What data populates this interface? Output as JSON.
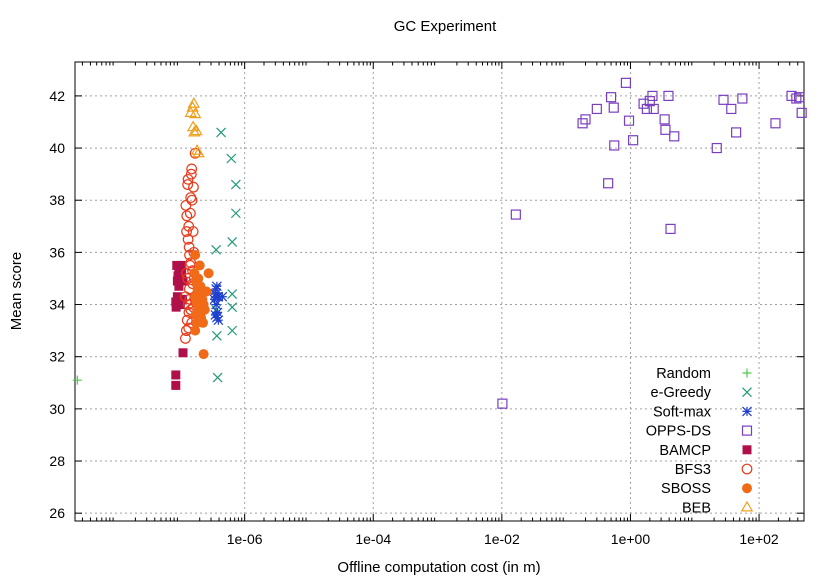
{
  "chart_data": {
    "type": "scatter",
    "title": "GC Experiment",
    "xlabel": "Offline computation cost (in m)",
    "ylabel": "Mean score",
    "xscale": "log",
    "xlim": [
      2.3e-09,
      500
    ],
    "ylim": [
      25.7,
      43.3
    ],
    "xticks": [
      {
        "value": 1e-06,
        "label": "1e-06"
      },
      {
        "value": 0.0001,
        "label": "1e-04"
      },
      {
        "value": 0.01,
        "label": "1e-02"
      },
      {
        "value": 1,
        "label": "1e+00"
      },
      {
        "value": 100,
        "label": "1e+02"
      }
    ],
    "yticks": [
      26,
      28,
      30,
      32,
      34,
      36,
      38,
      40,
      42
    ],
    "grid": true,
    "legend_position": "bottom-right",
    "series": [
      {
        "name": "Random",
        "marker": "plus",
        "color": "#4cc94c",
        "points": [
          [
            2.5e-09,
            31.1
          ]
        ]
      },
      {
        "name": "e-Greedy",
        "marker": "x",
        "color": "#22997a",
        "points": [
          [
            4.3e-07,
            40.6
          ],
          [
            6.2e-07,
            39.6
          ],
          [
            7.3e-07,
            38.6
          ],
          [
            7.3e-07,
            37.5
          ],
          [
            6.4e-07,
            36.4
          ],
          [
            3.6e-07,
            36.1
          ],
          [
            6.4e-07,
            34.4
          ],
          [
            6.4e-07,
            33.9
          ],
          [
            3.6e-07,
            33.8
          ],
          [
            6.4e-07,
            33.0
          ],
          [
            3.7e-07,
            32.8
          ],
          [
            3.8e-07,
            31.2
          ]
        ]
      },
      {
        "name": "Soft-max",
        "marker": "star",
        "color": "#1f3fcf",
        "points": [
          [
            3.7e-07,
            34.7
          ],
          [
            3.6e-07,
            34.6
          ],
          [
            3.5e-07,
            34.4
          ],
          [
            3.8e-07,
            34.3
          ],
          [
            3.4e-07,
            34.2
          ],
          [
            3.9e-07,
            34.3
          ],
          [
            4.5e-07,
            34.3
          ],
          [
            3.6e-07,
            34.0
          ],
          [
            3.8e-07,
            33.7
          ],
          [
            3.5e-07,
            33.6
          ],
          [
            3.7e-07,
            33.5
          ],
          [
            3.9e-07,
            33.4
          ]
        ]
      },
      {
        "name": "OPPS-DS",
        "marker": "square-open",
        "color": "#7a3fbf",
        "points": [
          [
            0.0102,
            30.2
          ],
          [
            0.0165,
            37.45
          ],
          [
            0.45,
            38.65
          ],
          [
            4.2,
            36.9
          ],
          [
            0.18,
            40.95
          ],
          [
            0.2,
            41.1
          ],
          [
            0.3,
            41.5
          ],
          [
            0.5,
            41.95
          ],
          [
            0.55,
            41.55
          ],
          [
            0.85,
            42.5
          ],
          [
            0.95,
            41.05
          ],
          [
            1.1,
            40.3
          ],
          [
            0.56,
            40.1
          ],
          [
            1.6,
            41.7
          ],
          [
            1.8,
            41.5
          ],
          [
            2.0,
            41.8
          ],
          [
            2.2,
            42.0
          ],
          [
            2.3,
            41.5
          ],
          [
            3.4,
            41.1
          ],
          [
            3.5,
            40.7
          ],
          [
            3.9,
            42.0
          ],
          [
            4.8,
            40.45
          ],
          [
            22,
            40.0
          ],
          [
            28,
            41.85
          ],
          [
            37,
            41.5
          ],
          [
            44,
            40.6
          ],
          [
            55,
            41.9
          ],
          [
            180,
            40.95
          ],
          [
            320,
            42.0
          ],
          [
            380,
            41.9
          ],
          [
            420,
            41.95
          ],
          [
            460,
            41.35
          ]
        ]
      },
      {
        "name": "BAMCP",
        "marker": "square",
        "color": "#b0104a",
        "points": [
          [
            8.5e-08,
            31.3
          ],
          [
            8.5e-08,
            30.9
          ],
          [
            1.1e-07,
            32.15
          ],
          [
            8.5e-08,
            34.1
          ],
          [
            8.6e-08,
            33.9
          ],
          [
            9e-08,
            34.3
          ],
          [
            9e-08,
            34.9
          ],
          [
            9.5e-08,
            35.2
          ],
          [
            8.8e-08,
            35.5
          ],
          [
            1.02e-07,
            35.5
          ],
          [
            1.05e-07,
            35.2
          ],
          [
            9.5e-08,
            34.7
          ],
          [
            1.08e-07,
            34.2
          ],
          [
            1e-07,
            34.0
          ],
          [
            9.2e-08,
            35.1
          ],
          [
            1.1e-07,
            34.9
          ]
        ]
      },
      {
        "name": "BFS3",
        "marker": "circle-open",
        "color": "#e83a1a",
        "points": [
          [
            1.32e-07,
            38.8
          ],
          [
            1.6e-07,
            38.5
          ],
          [
            1.5e-07,
            39.2
          ],
          [
            1.45e-07,
            38.1
          ],
          [
            1.22e-07,
            37.8
          ],
          [
            1.26e-07,
            37.4
          ],
          [
            1.35e-07,
            37.0
          ],
          [
            1.32e-07,
            36.5
          ],
          [
            1.37e-07,
            36.2
          ],
          [
            1.39e-07,
            35.9
          ],
          [
            1.42e-07,
            35.5
          ],
          [
            1.25e-07,
            35.2
          ],
          [
            1.3e-07,
            35.0
          ],
          [
            1.38e-07,
            34.6
          ],
          [
            1.2e-07,
            34.3
          ],
          [
            1.33e-07,
            34.0
          ],
          [
            1.36e-07,
            33.7
          ],
          [
            1.28e-07,
            33.4
          ],
          [
            1.24e-07,
            33.0
          ],
          [
            1.2e-07,
            32.7
          ],
          [
            1.7e-07,
            39.8
          ],
          [
            1.48e-07,
            39.0
          ],
          [
            1.52e-07,
            38.0
          ],
          [
            1.43e-07,
            37.5
          ],
          [
            1.58e-07,
            36.8
          ],
          [
            1.62e-07,
            36.0
          ],
          [
            1.45e-07,
            35.6
          ],
          [
            1.55e-07,
            34.8
          ],
          [
            1.4e-07,
            34.2
          ],
          [
            1.46e-07,
            33.8
          ],
          [
            1.5e-07,
            33.3
          ],
          [
            1.35e-07,
            33.1
          ],
          [
            1.65e-07,
            35.0
          ],
          [
            1.7e-07,
            34.2
          ],
          [
            1.25e-07,
            36.8
          ],
          [
            1.3e-07,
            38.6
          ],
          [
            1.55e-07,
            35.3
          ],
          [
            1.6e-07,
            33.9
          ]
        ]
      },
      {
        "name": "SBOSS",
        "marker": "circle",
        "color": "#f06a18",
        "points": [
          [
            2.3e-07,
            32.1
          ],
          [
            2.75e-07,
            35.2
          ],
          [
            1.7e-07,
            35.9
          ],
          [
            1.65e-07,
            35.2
          ],
          [
            1.75e-07,
            34.9
          ],
          [
            1.9e-07,
            35.0
          ],
          [
            1.85e-07,
            34.6
          ],
          [
            2.05e-07,
            34.7
          ],
          [
            1.7e-07,
            34.3
          ],
          [
            2.15e-07,
            34.4
          ],
          [
            1.78e-07,
            34.1
          ],
          [
            2.2e-07,
            34.2
          ],
          [
            1.88e-07,
            33.9
          ],
          [
            2.3e-07,
            34.0
          ],
          [
            1.72e-07,
            33.6
          ],
          [
            1.95e-07,
            33.7
          ],
          [
            2.1e-07,
            33.5
          ],
          [
            1.8e-07,
            33.3
          ],
          [
            1.7e-07,
            33.0
          ],
          [
            2.4e-07,
            33.8
          ],
          [
            2.55e-07,
            34.5
          ],
          [
            2e-07,
            35.5
          ],
          [
            2.25e-07,
            33.3
          ],
          [
            1.92e-07,
            34.4
          ]
        ]
      },
      {
        "name": "BEB",
        "marker": "triangle-open",
        "color": "#f0a020",
        "points": [
          [
            1.62e-07,
            41.7
          ],
          [
            1.55e-07,
            41.55
          ],
          [
            1.45e-07,
            41.35
          ],
          [
            1.7e-07,
            41.3
          ],
          [
            1.58e-07,
            40.8
          ],
          [
            1.65e-07,
            40.6
          ],
          [
            1.78e-07,
            40.65
          ],
          [
            1.82e-07,
            39.9
          ],
          [
            1.92e-07,
            39.8
          ]
        ]
      }
    ]
  }
}
